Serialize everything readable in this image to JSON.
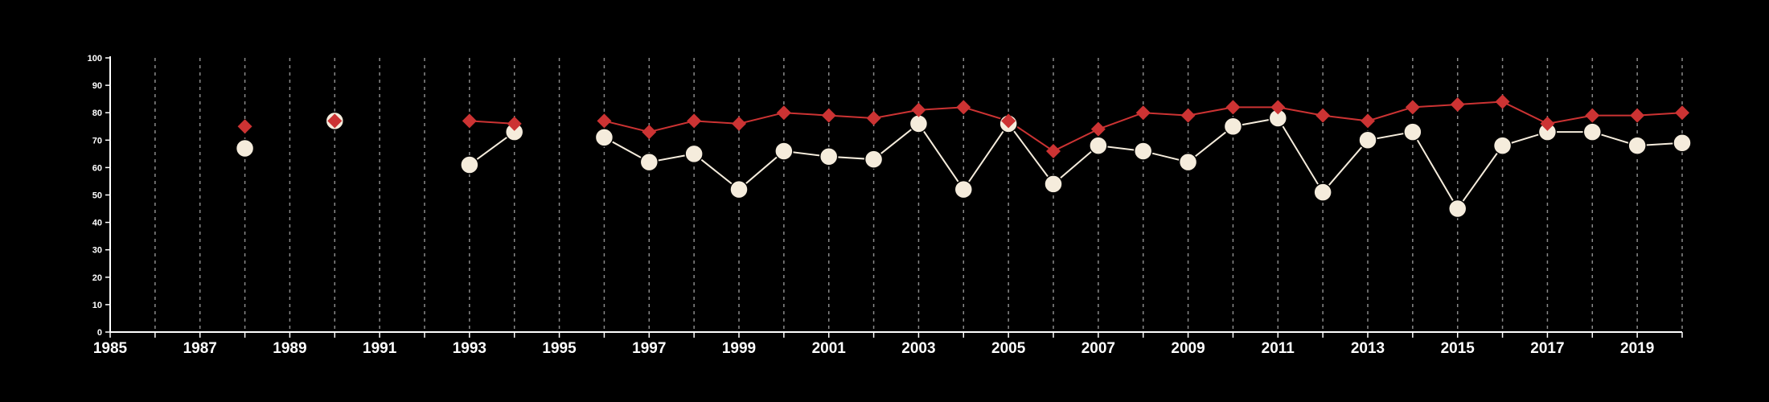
{
  "chart_data": {
    "type": "line",
    "title": "",
    "xlabel": "",
    "ylabel": "",
    "xlim": [
      1985,
      2020
    ],
    "ylim": [
      0,
      100
    ],
    "x_ticks": [
      1985,
      1987,
      1989,
      1991,
      1993,
      1995,
      1997,
      1999,
      2001,
      2003,
      2005,
      2007,
      2009,
      2011,
      2013,
      2015,
      2017,
      2019
    ],
    "y_ticks": [
      0,
      10,
      20,
      30,
      40,
      50,
      60,
      70,
      80,
      90,
      100
    ],
    "grid": "vertical dashed lines at each year",
    "legend": "none",
    "series": [
      {
        "marker": "diamond",
        "color": "#cc3333",
        "points": [
          {
            "x": 1988,
            "y": 75
          },
          {
            "x": 1990,
            "y": 77
          },
          {
            "x": 1993,
            "y": 77
          },
          {
            "x": 1994,
            "y": 76
          },
          {
            "x": 1996,
            "y": 77
          },
          {
            "x": 1997,
            "y": 73
          },
          {
            "x": 1998,
            "y": 77
          },
          {
            "x": 1999,
            "y": 76
          },
          {
            "x": 2000,
            "y": 80
          },
          {
            "x": 2001,
            "y": 79
          },
          {
            "x": 2002,
            "y": 78
          },
          {
            "x": 2003,
            "y": 81
          },
          {
            "x": 2004,
            "y": 82
          },
          {
            "x": 2005,
            "y": 77
          },
          {
            "x": 2006,
            "y": 66
          },
          {
            "x": 2007,
            "y": 74
          },
          {
            "x": 2008,
            "y": 80
          },
          {
            "x": 2009,
            "y": 79
          },
          {
            "x": 2010,
            "y": 82
          },
          {
            "x": 2011,
            "y": 82
          },
          {
            "x": 2012,
            "y": 79
          },
          {
            "x": 2013,
            "y": 77
          },
          {
            "x": 2014,
            "y": 82
          },
          {
            "x": 2015,
            "y": 83
          },
          {
            "x": 2016,
            "y": 84
          },
          {
            "x": 2017,
            "y": 76
          },
          {
            "x": 2018,
            "y": 79
          },
          {
            "x": 2019,
            "y": 79
          },
          {
            "x": 2020,
            "y": 80
          }
        ]
      },
      {
        "marker": "circle",
        "color": "#f5ecdc",
        "points": [
          {
            "x": 1988,
            "y": 67
          },
          {
            "x": 1990,
            "y": 77
          },
          {
            "x": 1993,
            "y": 61
          },
          {
            "x": 1994,
            "y": 73
          },
          {
            "x": 1996,
            "y": 71
          },
          {
            "x": 1997,
            "y": 62
          },
          {
            "x": 1998,
            "y": 65
          },
          {
            "x": 1999,
            "y": 52
          },
          {
            "x": 2000,
            "y": 66
          },
          {
            "x": 2001,
            "y": 64
          },
          {
            "x": 2002,
            "y": 63
          },
          {
            "x": 2003,
            "y": 76
          },
          {
            "x": 2004,
            "y": 52
          },
          {
            "x": 2005,
            "y": 76
          },
          {
            "x": 2006,
            "y": 54
          },
          {
            "x": 2007,
            "y": 68
          },
          {
            "x": 2008,
            "y": 66
          },
          {
            "x": 2009,
            "y": 62
          },
          {
            "x": 2010,
            "y": 75
          },
          {
            "x": 2011,
            "y": 78
          },
          {
            "x": 2012,
            "y": 51
          },
          {
            "x": 2013,
            "y": 70
          },
          {
            "x": 2014,
            "y": 73
          },
          {
            "x": 2015,
            "y": 45
          },
          {
            "x": 2016,
            "y": 68
          },
          {
            "x": 2017,
            "y": 73
          },
          {
            "x": 2018,
            "y": 73
          },
          {
            "x": 2019,
            "y": 68
          },
          {
            "x": 2020,
            "y": 69
          }
        ]
      }
    ]
  }
}
